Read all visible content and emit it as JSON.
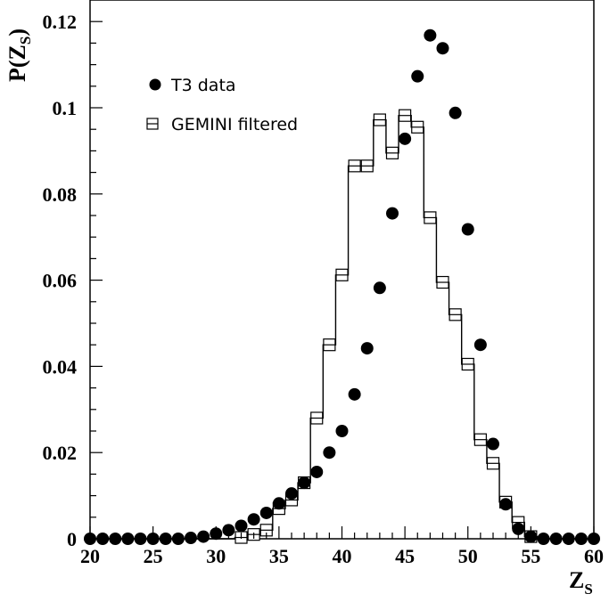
{
  "chart_data": {
    "type": "scatter",
    "xlabel": "Z",
    "xlabel_sub": "S",
    "ylabel": "P(Z",
    "ylabel_sub": "S",
    "ylabel_close": ")",
    "xlim": [
      20,
      60
    ],
    "ylim": [
      0,
      0.125
    ],
    "x_ticks": [
      20,
      25,
      30,
      35,
      40,
      45,
      50,
      55,
      60
    ],
    "x_tick_labels": [
      "20",
      "25",
      "30",
      "35",
      "40",
      "45",
      "50",
      "55",
      "60"
    ],
    "y_ticks": [
      0,
      0.02,
      0.04,
      0.06,
      0.08,
      0.1,
      0.12
    ],
    "y_tick_labels": [
      "0",
      "0.02",
      "0.04",
      "0.06",
      "0.08",
      "0.1",
      "0.12"
    ],
    "legend_position": "top-left",
    "series": [
      {
        "name": "T3 data",
        "marker": "filled-circle",
        "x": [
          20,
          21,
          22,
          23,
          24,
          25,
          26,
          27,
          28,
          29,
          30,
          31,
          32,
          33,
          34,
          35,
          36,
          37,
          38,
          39,
          40,
          41,
          42,
          43,
          44,
          45,
          46,
          47,
          48,
          49,
          50,
          51,
          52,
          53,
          54,
          55,
          56,
          57,
          58,
          59,
          60
        ],
        "y": [
          0,
          0,
          0,
          0,
          0,
          0,
          0,
          0,
          0.0002,
          0.0005,
          0.0012,
          0.002,
          0.003,
          0.0045,
          0.006,
          0.0082,
          0.0105,
          0.013,
          0.0155,
          0.02,
          0.025,
          0.0335,
          0.0442,
          0.0582,
          0.0755,
          0.0928,
          0.1073,
          0.1168,
          0.1138,
          0.0988,
          0.0718,
          0.045,
          0.022,
          0.008,
          0.0023,
          0.0005,
          0,
          0,
          0,
          0,
          0
        ]
      },
      {
        "name": "GEMINI filtered",
        "marker": "open-square-step",
        "x": [
          20,
          21,
          22,
          23,
          24,
          25,
          26,
          27,
          28,
          29,
          30,
          31,
          32,
          33,
          34,
          35,
          36,
          37,
          38,
          39,
          40,
          41,
          42,
          43,
          44,
          45,
          46,
          47,
          48,
          49,
          50,
          51,
          52,
          53,
          54,
          55,
          56,
          57,
          58,
          59,
          60
        ],
        "y": [
          0,
          0,
          0,
          0,
          0,
          0,
          0,
          0,
          0,
          0,
          0,
          0,
          0.0003,
          0.001,
          0.002,
          0.007,
          0.009,
          0.013,
          0.028,
          0.045,
          0.0612,
          0.0865,
          0.0865,
          0.0972,
          0.0895,
          0.0982,
          0.0955,
          0.0745,
          0.0595,
          0.052,
          0.0405,
          0.023,
          0.0175,
          0.0085,
          0.0038,
          0.0005,
          0,
          0,
          0,
          0,
          0
        ]
      }
    ]
  }
}
